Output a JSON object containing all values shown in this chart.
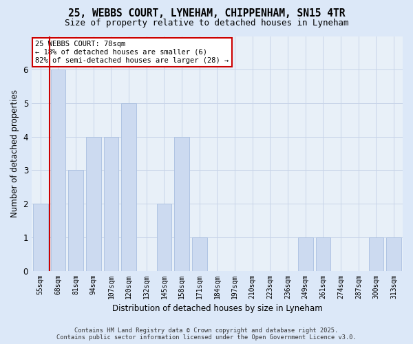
{
  "title_line1": "25, WEBBS COURT, LYNEHAM, CHIPPENHAM, SN15 4TR",
  "title_line2": "Size of property relative to detached houses in Lyneham",
  "xlabel": "Distribution of detached houses by size in Lyneham",
  "ylabel": "Number of detached properties",
  "categories": [
    "55sqm",
    "68sqm",
    "81sqm",
    "94sqm",
    "107sqm",
    "120sqm",
    "132sqm",
    "145sqm",
    "158sqm",
    "171sqm",
    "184sqm",
    "197sqm",
    "210sqm",
    "223sqm",
    "236sqm",
    "249sqm",
    "261sqm",
    "274sqm",
    "287sqm",
    "300sqm",
    "313sqm"
  ],
  "values": [
    2,
    6,
    3,
    4,
    4,
    5,
    0,
    2,
    4,
    1,
    0,
    0,
    0,
    0,
    0,
    1,
    1,
    0,
    0,
    1,
    1
  ],
  "bar_color": "#ccdaf0",
  "bar_edge_color": "#aac0e0",
  "vline_color": "#cc0000",
  "annotation_text": "25 WEBBS COURT: 78sqm\n← 18% of detached houses are smaller (6)\n82% of semi-detached houses are larger (28) →",
  "annotation_box_color": "#cc0000",
  "ylim": [
    0,
    7
  ],
  "yticks": [
    0,
    1,
    2,
    3,
    4,
    5,
    6
  ],
  "footer_line1": "Contains HM Land Registry data © Crown copyright and database right 2025.",
  "footer_line2": "Contains public sector information licensed under the Open Government Licence v3.0.",
  "fig_bg_color": "#dce8f8",
  "plot_bg_color": "#e8f0f8",
  "grid_color": "#c8d4e8"
}
